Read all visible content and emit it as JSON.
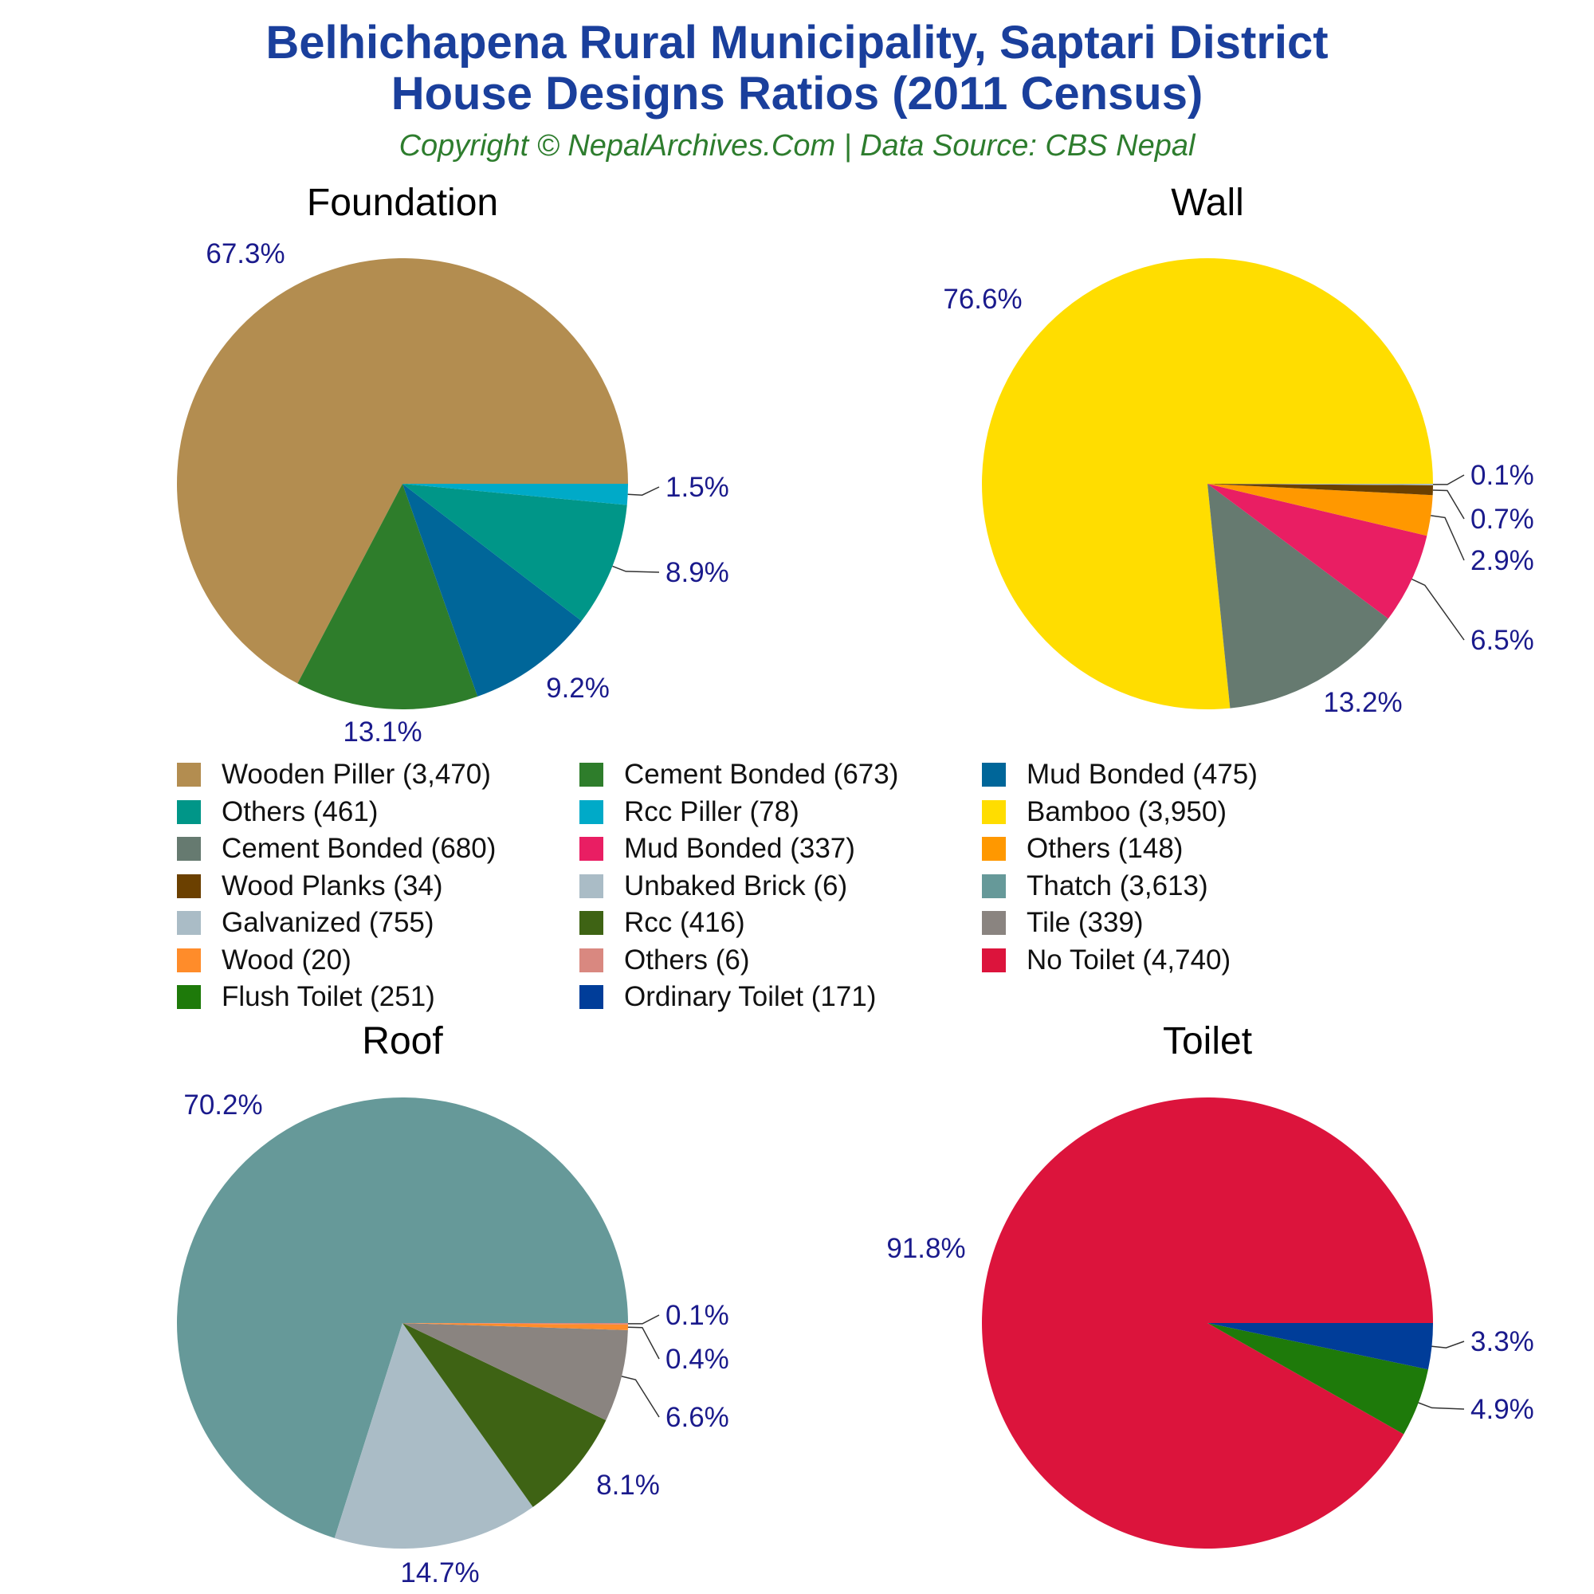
{
  "header": {
    "title_line1": "Belhichapena Rural Municipality, Saptari District",
    "title_line2": "House Designs Ratios (2011 Census)",
    "subtitle": "Copyright © NepalArchives.Com | Data Source: CBS Nepal"
  },
  "colors": {
    "title": "#1a3f9c",
    "subtitle": "#2e7d2e",
    "percent_labels": "#1a1a8c"
  },
  "chart_data": [
    {
      "type": "pie",
      "title": "Foundation",
      "slices": [
        {
          "label": "Wooden Piller",
          "count": 3470,
          "value": 67.3,
          "pct_label": "67.3%",
          "color": "#b38d50"
        },
        {
          "label": "Cement Bonded",
          "count": 673,
          "value": 13.1,
          "pct_label": "13.1%",
          "color": "#2e7d2b"
        },
        {
          "label": "Mud Bonded",
          "count": 475,
          "value": 9.2,
          "pct_label": "9.2%",
          "color": "#006699"
        },
        {
          "label": "Others",
          "count": 461,
          "value": 8.9,
          "pct_label": "8.9%",
          "color": "#009688"
        },
        {
          "label": "Rcc Piller",
          "count": 78,
          "value": 1.5,
          "pct_label": "1.5%",
          "color": "#00aac8"
        }
      ]
    },
    {
      "type": "pie",
      "title": "Wall",
      "slices": [
        {
          "label": "Bamboo",
          "count": 3950,
          "value": 76.6,
          "pct_label": "76.6%",
          "color": "#ffdd00"
        },
        {
          "label": "Cement Bonded",
          "count": 680,
          "value": 13.2,
          "pct_label": "13.2%",
          "color": "#667a70"
        },
        {
          "label": "Mud Bonded",
          "count": 337,
          "value": 6.5,
          "pct_label": "6.5%",
          "color": "#e91e63"
        },
        {
          "label": "Others",
          "count": 148,
          "value": 2.9,
          "pct_label": "2.9%",
          "color": "#ff9800"
        },
        {
          "label": "Wood Planks",
          "count": 34,
          "value": 0.7,
          "pct_label": "0.7%",
          "color": "#6b4000"
        },
        {
          "label": "Unbaked Brick",
          "count": 6,
          "value": 0.1,
          "pct_label": "0.1%",
          "color": "#aabcc6"
        }
      ]
    },
    {
      "type": "pie",
      "title": "Roof",
      "slices": [
        {
          "label": "Thatch",
          "count": 3613,
          "value": 70.2,
          "pct_label": "70.2%",
          "color": "#669999"
        },
        {
          "label": "Galvanized",
          "count": 755,
          "value": 14.7,
          "pct_label": "14.7%",
          "color": "#aabcc6"
        },
        {
          "label": "Rcc",
          "count": 416,
          "value": 8.1,
          "pct_label": "8.1%",
          "color": "#3e6314"
        },
        {
          "label": "Tile",
          "count": 339,
          "value": 6.6,
          "pct_label": "6.6%",
          "color": "#8a8480"
        },
        {
          "label": "Wood",
          "count": 20,
          "value": 0.4,
          "pct_label": "0.4%",
          "color": "#ff8c2a"
        },
        {
          "label": "Others",
          "count": 6,
          "value": 0.1,
          "pct_label": "0.1%",
          "color": "#d98880"
        }
      ]
    },
    {
      "type": "pie",
      "title": "Toilet",
      "slices": [
        {
          "label": "No Toilet",
          "count": 4740,
          "value": 91.8,
          "pct_label": "91.8%",
          "color": "#dc143c"
        },
        {
          "label": "Flush Toilet",
          "count": 251,
          "value": 4.9,
          "pct_label": "4.9%",
          "color": "#1e7a0a"
        },
        {
          "label": "Ordinary Toilet",
          "count": 171,
          "value": 3.3,
          "pct_label": "3.3%",
          "color": "#003d99"
        }
      ]
    }
  ],
  "legend": {
    "items": [
      {
        "label": "Wooden Piller (3,470)",
        "color": "#b38d50"
      },
      {
        "label": "Cement Bonded (673)",
        "color": "#2e7d2b"
      },
      {
        "label": "Mud Bonded (475)",
        "color": "#006699"
      },
      {
        "label": "Others (461)",
        "color": "#009688"
      },
      {
        "label": "Rcc Piller (78)",
        "color": "#00aac8"
      },
      {
        "label": "Bamboo (3,950)",
        "color": "#ffdd00"
      },
      {
        "label": "Cement Bonded (680)",
        "color": "#667a70"
      },
      {
        "label": "Mud Bonded (337)",
        "color": "#e91e63"
      },
      {
        "label": "Others (148)",
        "color": "#ff9800"
      },
      {
        "label": "Wood Planks (34)",
        "color": "#6b4000"
      },
      {
        "label": "Unbaked Brick (6)",
        "color": "#aabcc6"
      },
      {
        "label": "Thatch (3,613)",
        "color": "#669999"
      },
      {
        "label": "Galvanized (755)",
        "color": "#aabcc6"
      },
      {
        "label": "Rcc (416)",
        "color": "#3e6314"
      },
      {
        "label": "Tile (339)",
        "color": "#8a8480"
      },
      {
        "label": "Wood (20)",
        "color": "#ff8c2a"
      },
      {
        "label": "Others (6)",
        "color": "#d98880"
      },
      {
        "label": "No Toilet (4,740)",
        "color": "#dc143c"
      },
      {
        "label": "Flush Toilet (251)",
        "color": "#1e7a0a"
      },
      {
        "label": "Ordinary Toilet (171)",
        "color": "#003d99"
      }
    ]
  }
}
